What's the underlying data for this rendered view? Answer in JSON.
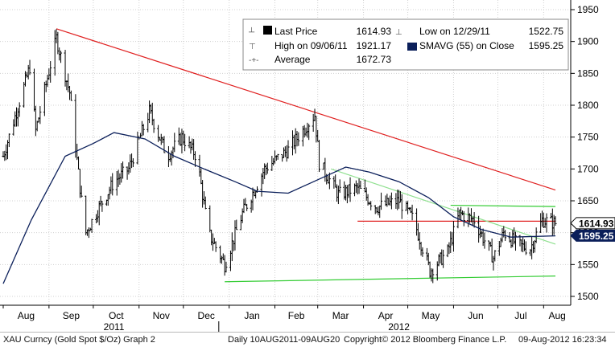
{
  "chart_data": {
    "type": "candlestick",
    "price_axis": {
      "ylim": [
        1500,
        1950
      ],
      "ticks": [
        1500,
        1550,
        1600,
        1650,
        1700,
        1750,
        1800,
        1850,
        1900,
        1950
      ]
    },
    "time_axis": {
      "x_range": [
        "2011-08-01",
        "2012-08-09"
      ],
      "month_ticks": [
        {
          "label": "Aug",
          "date": "2011-08-01"
        },
        {
          "label": "Sep",
          "date": "2011-09-01"
        },
        {
          "label": "Oct",
          "date": "2011-10-01"
        },
        {
          "label": "Nov",
          "date": "2011-11-01"
        },
        {
          "label": "Dec",
          "date": "2011-12-01"
        },
        {
          "label": "Jan",
          "date": "2012-01-01"
        },
        {
          "label": "Feb",
          "date": "2012-02-01"
        },
        {
          "label": "Mar",
          "date": "2012-03-01"
        },
        {
          "label": "Apr",
          "date": "2012-04-01"
        },
        {
          "label": "May",
          "date": "2012-05-01"
        },
        {
          "label": "Jun",
          "date": "2012-06-01"
        },
        {
          "label": "Jul",
          "date": "2012-07-01"
        },
        {
          "label": "Aug",
          "date": "2012-08-01"
        }
      ],
      "year_labels": [
        {
          "label": "2011",
          "date": "2011-10-15"
        },
        {
          "label": "2012",
          "date": "2012-04-25"
        }
      ],
      "year_divider_date": "2011-12-25"
    },
    "legend": {
      "placement": "top-right",
      "rows": [
        {
          "left_label": "Last Price",
          "left_value": "1614.93",
          "right_label": "Low on 12/29/11",
          "right_value": "1522.75"
        },
        {
          "left_label": "High on 09/06/11",
          "left_value": "1921.17",
          "right_label": "SMAVG (55) on Close",
          "right_value": "1595.25"
        },
        {
          "left_label": "Average",
          "left_value": "1672.73",
          "right_label": "",
          "right_value": ""
        }
      ]
    },
    "last_price_tag": {
      "value": 1614.93,
      "label": "1614.93"
    },
    "smavg_tag": {
      "value": 1595.25,
      "label": "1595.25"
    },
    "series": [
      {
        "name": "Last Price",
        "kind": "ohlc",
        "color": "#000000",
        "points": [
          {
            "date": "2011-08-01",
            "close": 1720
          },
          {
            "date": "2011-08-10",
            "close": 1790
          },
          {
            "date": "2011-08-19",
            "close": 1860
          },
          {
            "date": "2011-08-23",
            "close": 1760
          },
          {
            "date": "2011-09-06",
            "close": 1905
          },
          {
            "date": "2011-09-15",
            "close": 1820
          },
          {
            "date": "2011-09-23",
            "close": 1650
          },
          {
            "date": "2011-09-26",
            "close": 1600
          },
          {
            "date": "2011-10-05",
            "close": 1640
          },
          {
            "date": "2011-10-15",
            "close": 1680
          },
          {
            "date": "2011-10-25",
            "close": 1700
          },
          {
            "date": "2011-11-08",
            "close": 1790
          },
          {
            "date": "2011-11-20",
            "close": 1720
          },
          {
            "date": "2011-11-30",
            "close": 1750
          },
          {
            "date": "2011-12-10",
            "close": 1720
          },
          {
            "date": "2011-12-18",
            "close": 1600
          },
          {
            "date": "2011-12-29",
            "close": 1550
          },
          {
            "date": "2012-01-10",
            "close": 1630
          },
          {
            "date": "2012-01-25",
            "close": 1700
          },
          {
            "date": "2012-02-10",
            "close": 1730
          },
          {
            "date": "2012-02-28",
            "close": 1785
          },
          {
            "date": "2012-03-02",
            "close": 1710
          },
          {
            "date": "2012-03-15",
            "close": 1660
          },
          {
            "date": "2012-03-28",
            "close": 1670
          },
          {
            "date": "2012-04-10",
            "close": 1640
          },
          {
            "date": "2012-04-25",
            "close": 1650
          },
          {
            "date": "2012-05-05",
            "close": 1620
          },
          {
            "date": "2012-05-16",
            "close": 1540
          },
          {
            "date": "2012-05-28",
            "close": 1570
          },
          {
            "date": "2012-06-05",
            "close": 1630
          },
          {
            "date": "2012-06-15",
            "close": 1620
          },
          {
            "date": "2012-06-28",
            "close": 1560
          },
          {
            "date": "2012-07-05",
            "close": 1600
          },
          {
            "date": "2012-07-15",
            "close": 1580
          },
          {
            "date": "2012-07-23",
            "close": 1575
          },
          {
            "date": "2012-07-31",
            "close": 1620
          },
          {
            "date": "2012-08-09",
            "close": 1615
          }
        ]
      },
      {
        "name": "SMAVG (55) on Close",
        "kind": "line",
        "color": "#0b1f5a",
        "points": [
          {
            "date": "2011-08-01",
            "value": 1520
          },
          {
            "date": "2011-08-20",
            "value": 1620
          },
          {
            "date": "2011-09-12",
            "value": 1720
          },
          {
            "date": "2011-10-01",
            "value": 1740
          },
          {
            "date": "2011-10-15",
            "value": 1757
          },
          {
            "date": "2011-11-05",
            "value": 1747
          },
          {
            "date": "2011-11-25",
            "value": 1720
          },
          {
            "date": "2011-12-15",
            "value": 1700
          },
          {
            "date": "2012-01-05",
            "value": 1680
          },
          {
            "date": "2012-01-20",
            "value": 1665
          },
          {
            "date": "2012-02-10",
            "value": 1662
          },
          {
            "date": "2012-03-01",
            "value": 1683
          },
          {
            "date": "2012-03-20",
            "value": 1703
          },
          {
            "date": "2012-04-05",
            "value": 1695
          },
          {
            "date": "2012-04-25",
            "value": 1680
          },
          {
            "date": "2012-05-15",
            "value": 1655
          },
          {
            "date": "2012-06-01",
            "value": 1625
          },
          {
            "date": "2012-06-20",
            "value": 1605
          },
          {
            "date": "2012-07-10",
            "value": 1593
          },
          {
            "date": "2012-08-09",
            "value": 1595
          }
        ]
      }
    ],
    "trendlines": [
      {
        "color": "#e02020",
        "from": {
          "date": "2011-09-06",
          "value": 1920
        },
        "to": {
          "date": "2012-08-09",
          "value": 1667
        }
      },
      {
        "color": "#33cc33",
        "from": {
          "date": "2011-12-29",
          "value": 1523
        },
        "to": {
          "date": "2012-08-09",
          "value": 1532
        }
      },
      {
        "color": "#e02020",
        "from": {
          "date": "2012-03-28",
          "value": 1618
        },
        "to": {
          "date": "2012-08-09",
          "value": 1618
        }
      },
      {
        "color": "#33cc33",
        "from": {
          "date": "2012-05-30",
          "value": 1643
        },
        "to": {
          "date": "2012-08-09",
          "value": 1641
        }
      },
      {
        "color": "#8fe08f",
        "from": {
          "date": "2012-03-10",
          "value": 1700
        },
        "to": {
          "date": "2012-08-09",
          "value": 1582
        }
      }
    ]
  },
  "footer": {
    "instrument": "XAU Curncy (Gold Spot  $/Oz) Graph 2",
    "range": "Daily 10AUG2011-09AUG20",
    "copyright": "Copyright© 2012 Bloomberg Finance L.P.",
    "timestamp": "09-Aug-2012 16:23:34"
  }
}
